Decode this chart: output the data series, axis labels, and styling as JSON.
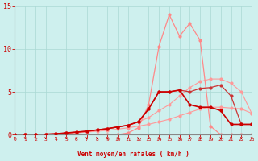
{
  "xlabel": "Vent moyen/en rafales ( km/h )",
  "xlim": [
    0,
    23
  ],
  "ylim": [
    0,
    15
  ],
  "xticks": [
    0,
    1,
    2,
    3,
    4,
    5,
    6,
    7,
    8,
    9,
    10,
    11,
    12,
    13,
    14,
    15,
    16,
    17,
    18,
    19,
    20,
    21,
    22,
    23
  ],
  "yticks": [
    0,
    5,
    10,
    15
  ],
  "bg_color": "#cef0ee",
  "grid_color": "#aad8d4",
  "lines": [
    {
      "x": [
        0,
        1,
        2,
        3,
        4,
        5,
        6,
        7,
        8,
        9,
        10,
        11,
        12,
        13,
        14,
        15,
        16,
        17,
        18,
        19,
        20,
        21,
        22,
        23
      ],
      "y": [
        0,
        0,
        0,
        0.05,
        0.1,
        0.15,
        0.2,
        0.3,
        0.4,
        0.5,
        0.65,
        0.8,
        1.0,
        1.2,
        1.5,
        1.8,
        2.2,
        2.6,
        3.0,
        3.2,
        3.2,
        3.1,
        3.0,
        2.5
      ],
      "color": "#ff9999",
      "lw": 0.8,
      "marker": "o",
      "ms": 2,
      "zorder": 2
    },
    {
      "x": [
        0,
        1,
        2,
        3,
        4,
        5,
        6,
        7,
        8,
        9,
        10,
        11,
        12,
        13,
        14,
        15,
        16,
        17,
        18,
        19,
        20,
        21,
        22,
        23
      ],
      "y": [
        0,
        0,
        0,
        0.05,
        0.1,
        0.2,
        0.3,
        0.4,
        0.55,
        0.7,
        0.9,
        1.1,
        1.5,
        2.0,
        2.8,
        3.5,
        4.5,
        5.5,
        6.2,
        6.5,
        6.5,
        6.0,
        5.0,
        2.5
      ],
      "color": "#ff9999",
      "lw": 0.8,
      "marker": "o",
      "ms": 2,
      "zorder": 2
    },
    {
      "x": [
        0,
        1,
        2,
        3,
        4,
        5,
        6,
        7,
        8,
        9,
        10,
        11,
        12,
        13,
        14,
        15,
        16,
        17,
        18,
        19,
        20,
        21,
        22,
        23
      ],
      "y": [
        0,
        0,
        0,
        0.05,
        0.1,
        0.2,
        0.3,
        0.4,
        0.55,
        0.7,
        0.9,
        1.1,
        1.5,
        3.0,
        5.0,
        5.0,
        5.2,
        5.0,
        5.4,
        5.5,
        5.8,
        4.5,
        1.2,
        1.2
      ],
      "color": "#cc3333",
      "lw": 0.9,
      "marker": "o",
      "ms": 2,
      "zorder": 3
    },
    {
      "x": [
        0,
        1,
        2,
        3,
        4,
        5,
        6,
        7,
        8,
        9,
        10,
        11,
        12,
        13,
        14,
        15,
        16,
        17,
        18,
        19,
        20,
        21,
        22,
        23
      ],
      "y": [
        0,
        0,
        0,
        0.05,
        0.1,
        0.2,
        0.3,
        0.4,
        0.55,
        0.7,
        0.9,
        1.1,
        1.5,
        3.0,
        5.0,
        5.0,
        5.2,
        3.5,
        3.2,
        3.2,
        2.8,
        1.2,
        1.2,
        1.2
      ],
      "color": "#cc0000",
      "lw": 1.2,
      "marker": "o",
      "ms": 2,
      "zorder": 4
    },
    {
      "x": [
        0,
        1,
        2,
        3,
        4,
        5,
        6,
        7,
        8,
        9,
        10,
        11,
        12,
        13,
        14,
        15,
        16,
        17,
        18,
        19,
        20,
        21,
        22,
        23
      ],
      "y": [
        0,
        0,
        0,
        0,
        0,
        0,
        0,
        0,
        0,
        0,
        0,
        0.2,
        0.8,
        3.5,
        10.3,
        14.0,
        11.5,
        13.0,
        11.0,
        1.0,
        0,
        0,
        0,
        0
      ],
      "color": "#ff8888",
      "lw": 0.9,
      "marker": "o",
      "ms": 2,
      "zorder": 2
    }
  ],
  "arrow_color": "#cc0000",
  "xlabel_color": "#cc0000",
  "tick_color": "#cc0000"
}
